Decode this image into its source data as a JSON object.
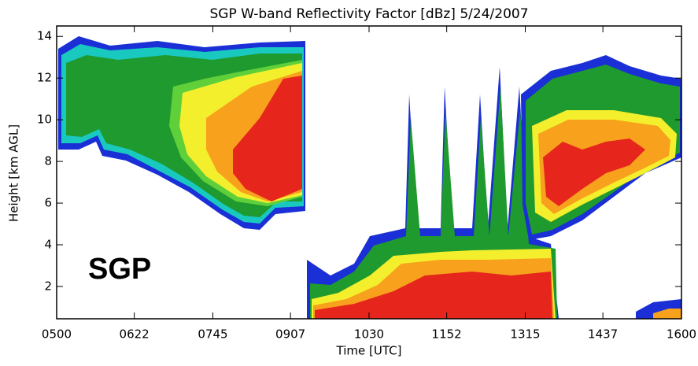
{
  "chart_data": {
    "type": "heatmap",
    "title": "SGP W-band Reflectivity Factor [dBz]   5/24/2007",
    "x_label": "Time [UTC]",
    "y_label": "Height [km AGL]",
    "annotation": "SGP",
    "xlim": [
      300,
      960
    ],
    "xticks": [
      {
        "value": 300,
        "label": "0500"
      },
      {
        "value": 382,
        "label": "0622"
      },
      {
        "value": 465,
        "label": "0745"
      },
      {
        "value": 547,
        "label": "0907"
      },
      {
        "value": 630,
        "label": "1030"
      },
      {
        "value": 712,
        "label": "1152"
      },
      {
        "value": 795,
        "label": "1315"
      },
      {
        "value": 877,
        "label": "1437"
      },
      {
        "value": 960,
        "label": "1600"
      }
    ],
    "ylim": [
      0.45,
      14.5
    ],
    "yticks": [
      2,
      4,
      6,
      8,
      10,
      12,
      14
    ],
    "grid": false
  }
}
